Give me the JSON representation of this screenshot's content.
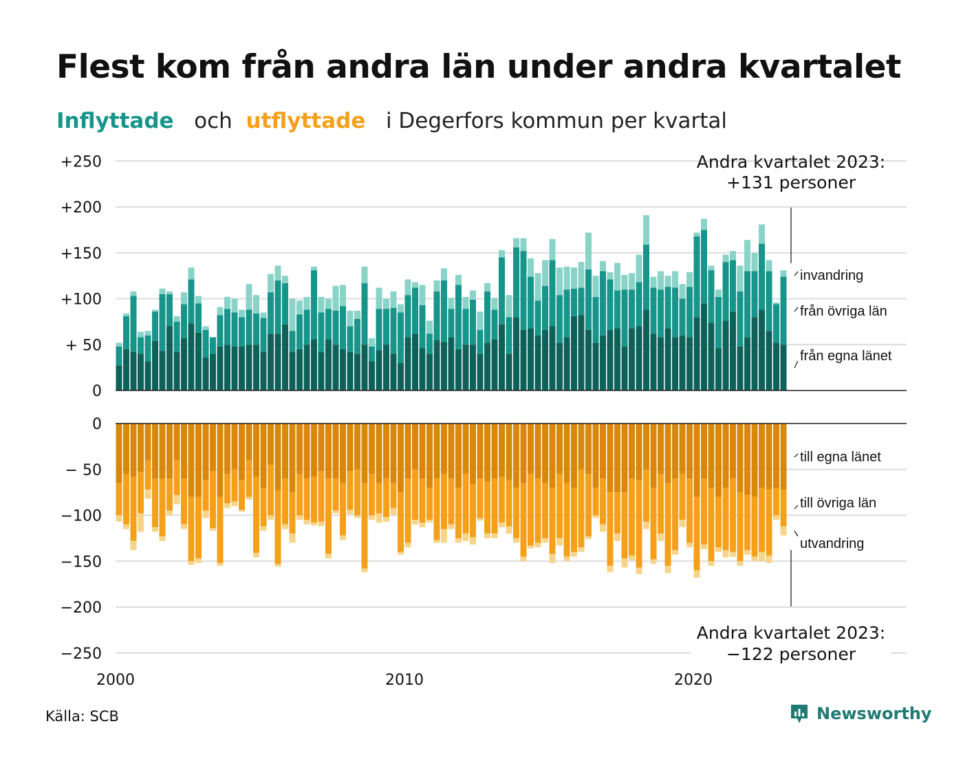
{
  "title": "Flest kom från andra län under andra kvartalet",
  "subtitle": {
    "in_word": "Inflyttade",
    "and_word": "och",
    "out_word": "utflyttade",
    "rest": "i Degerfors kommun per kvartal"
  },
  "source": "Källa: SCB",
  "logo": {
    "text": "Newsworthy",
    "icon": "newsworthy-logo-icon"
  },
  "colors": {
    "in_own": "#0e6159",
    "in_other": "#17958a",
    "in_immig": "#8ad3c8",
    "out_own": "#d9880c",
    "out_other": "#f5a01a",
    "out_emig": "#f6d48a",
    "grid": "#dcdcdc",
    "axis": "#222222"
  },
  "chart_data": {
    "type": "bar",
    "stacked": true,
    "x_start": 2000,
    "x_step": 0.25,
    "xticks": [
      "2000",
      "2010",
      "2020"
    ],
    "yticks_in": [
      "+250",
      "+200",
      "+150",
      "+100",
      "+ 50",
      "0"
    ],
    "yticks_out": [
      "0",
      "− 50",
      "−100",
      "−150",
      "−200",
      "−250"
    ],
    "ylim_in": [
      0,
      250
    ],
    "ylim_out": [
      -250,
      0
    ],
    "grid": true,
    "series_in": [
      {
        "name": "från egna länet",
        "values": [
          27,
          45,
          42,
          40,
          32,
          54,
          43,
          70,
          42,
          57,
          73,
          63,
          36,
          40,
          48,
          50,
          48,
          48,
          50,
          50,
          42,
          62,
          62,
          72,
          42,
          45,
          50,
          56,
          42,
          56,
          50,
          45,
          42,
          40,
          50,
          32,
          44,
          50,
          40,
          30,
          58,
          62,
          46,
          40,
          55,
          53,
          58,
          45,
          50,
          50,
          40,
          52,
          56,
          72,
          40,
          80,
          66,
          68,
          60,
          66,
          70,
          52,
          58,
          81,
          82,
          66,
          52,
          60,
          66,
          68,
          48,
          68,
          70,
          88,
          62,
          58,
          68,
          58,
          60,
          58,
          80,
          95,
          74,
          46,
          76,
          86,
          48,
          58,
          80,
          88,
          65,
          52,
          50
        ],
        "label_upper": "från egna länet"
      },
      {
        "name": "från övriga län",
        "values": [
          21,
          36,
          61,
          18,
          28,
          32,
          62,
          35,
          33,
          37,
          48,
          32,
          30,
          18,
          34,
          39,
          37,
          32,
          38,
          34,
          37,
          45,
          58,
          45,
          23,
          38,
          38,
          75,
          43,
          33,
          37,
          47,
          28,
          38,
          67,
          16,
          45,
          39,
          50,
          55,
          46,
          50,
          47,
          22,
          53,
          67,
          31,
          70,
          39,
          49,
          26,
          56,
          32,
          73,
          40,
          76,
          86,
          56,
          38,
          48,
          72,
          52,
          52,
          30,
          30,
          66,
          50,
          70,
          55,
          41,
          62,
          42,
          48,
          71,
          50,
          52,
          45,
          54,
          40,
          55,
          88,
          80,
          57,
          56,
          64,
          56,
          60,
          72,
          50,
          72,
          65,
          42,
          74
        ],
        "label_upper": "från övriga län"
      },
      {
        "name": "invandring",
        "values": [
          4,
          3,
          5,
          6,
          5,
          2,
          6,
          3,
          6,
          13,
          13,
          8,
          4,
          0,
          9,
          13,
          15,
          8,
          28,
          20,
          6,
          20,
          16,
          8,
          35,
          15,
          14,
          4,
          17,
          11,
          27,
          23,
          17,
          9,
          18,
          9,
          23,
          11,
          18,
          9,
          17,
          6,
          22,
          14,
          12,
          13,
          12,
          11,
          13,
          10,
          20,
          9,
          13,
          8,
          24,
          10,
          14,
          20,
          30,
          28,
          23,
          30,
          25,
          23,
          28,
          40,
          23,
          11,
          8,
          30,
          16,
          18,
          30,
          32,
          12,
          20,
          12,
          18,
          16,
          16,
          4,
          12,
          5,
          8,
          8,
          10,
          28,
          34,
          20,
          21,
          12,
          2,
          7
        ],
        "label_upper": "invandring"
      }
    ],
    "series_out": [
      {
        "name": "till egna länet",
        "values": [
          -65,
          -55,
          -58,
          -53,
          -40,
          -60,
          -60,
          -60,
          -40,
          -60,
          -80,
          -80,
          -62,
          -52,
          -80,
          -55,
          -50,
          -62,
          -40,
          -58,
          -70,
          -45,
          -73,
          -60,
          -75,
          -55,
          -60,
          -58,
          -52,
          -60,
          -60,
          -65,
          -52,
          -50,
          -65,
          -55,
          -65,
          -60,
          -65,
          -75,
          -60,
          -50,
          -60,
          -70,
          -60,
          -55,
          -60,
          -70,
          -55,
          -66,
          -60,
          -63,
          -60,
          -58,
          -62,
          -70,
          -65,
          -55,
          -60,
          -65,
          -70,
          -55,
          -65,
          -70,
          -50,
          -55,
          -70,
          -60,
          -75,
          -75,
          -75,
          -60,
          -62,
          -50,
          -70,
          -55,
          -65,
          -60,
          -55,
          -60,
          -80,
          -60,
          -70,
          -80,
          -70,
          -60,
          -75,
          -78,
          -80,
          -70,
          -72,
          -70,
          -72
        ],
        "label_lower": "till egna länet"
      },
      {
        "name": "till övriga län",
        "values": [
          -35,
          -55,
          -70,
          -45,
          -32,
          -53,
          -63,
          -35,
          -38,
          -50,
          -70,
          -67,
          -33,
          -62,
          -72,
          -32,
          -35,
          -32,
          -40,
          -83,
          -42,
          -55,
          -80,
          -50,
          -45,
          -45,
          -45,
          -50,
          -55,
          -82,
          -35,
          -57,
          -42,
          -50,
          -93,
          -45,
          -33,
          -42,
          -27,
          -65,
          -70,
          -55,
          -48,
          -35,
          -67,
          -60,
          -50,
          -55,
          -65,
          -58,
          -43,
          -57,
          -60,
          -50,
          -50,
          -55,
          -80,
          -78,
          -70,
          -60,
          -72,
          -70,
          -80,
          -70,
          -85,
          -68,
          -30,
          -50,
          -80,
          -45,
          -72,
          -84,
          -95,
          -57,
          -78,
          -65,
          -90,
          -78,
          -50,
          -70,
          -80,
          -72,
          -80,
          -55,
          -68,
          -80,
          -75,
          -60,
          -65,
          -70,
          -72,
          -30,
          -40
        ],
        "label_lower": "till övriga län"
      },
      {
        "name": "utvandring",
        "values": [
          -7,
          -5,
          -10,
          -20,
          -10,
          -5,
          -5,
          -5,
          -10,
          -5,
          -4,
          -5,
          -8,
          -3,
          -3,
          -5,
          -5,
          -2,
          -3,
          -5,
          -5,
          -5,
          -3,
          -5,
          -10,
          -5,
          -5,
          -3,
          -5,
          -5,
          -3,
          -5,
          -5,
          -3,
          -4,
          -5,
          -10,
          -5,
          -8,
          -3,
          -5,
          -5,
          -5,
          -3,
          -3,
          -15,
          -5,
          -5,
          -8,
          -8,
          -3,
          -5,
          -5,
          -5,
          -8,
          -5,
          -5,
          -3,
          -5,
          -5,
          -10,
          -8,
          -5,
          -5,
          -5,
          -3,
          -3,
          -8,
          -7,
          -8,
          -10,
          -5,
          -7,
          -8,
          -5,
          -8,
          -8,
          -5,
          -8,
          -5,
          -8,
          -5,
          -5,
          -5,
          -8,
          -5,
          -5,
          -5,
          -5,
          -10,
          -8,
          -5,
          -10
        ],
        "label_lower": "utvandring"
      }
    ],
    "annotations": {
      "top_line1": "Andra kvartalet 2023:",
      "top_line2": "+131 personer",
      "bottom_line1": "Andra kvartalet 2023:",
      "bottom_line2": "−122 personer"
    }
  }
}
